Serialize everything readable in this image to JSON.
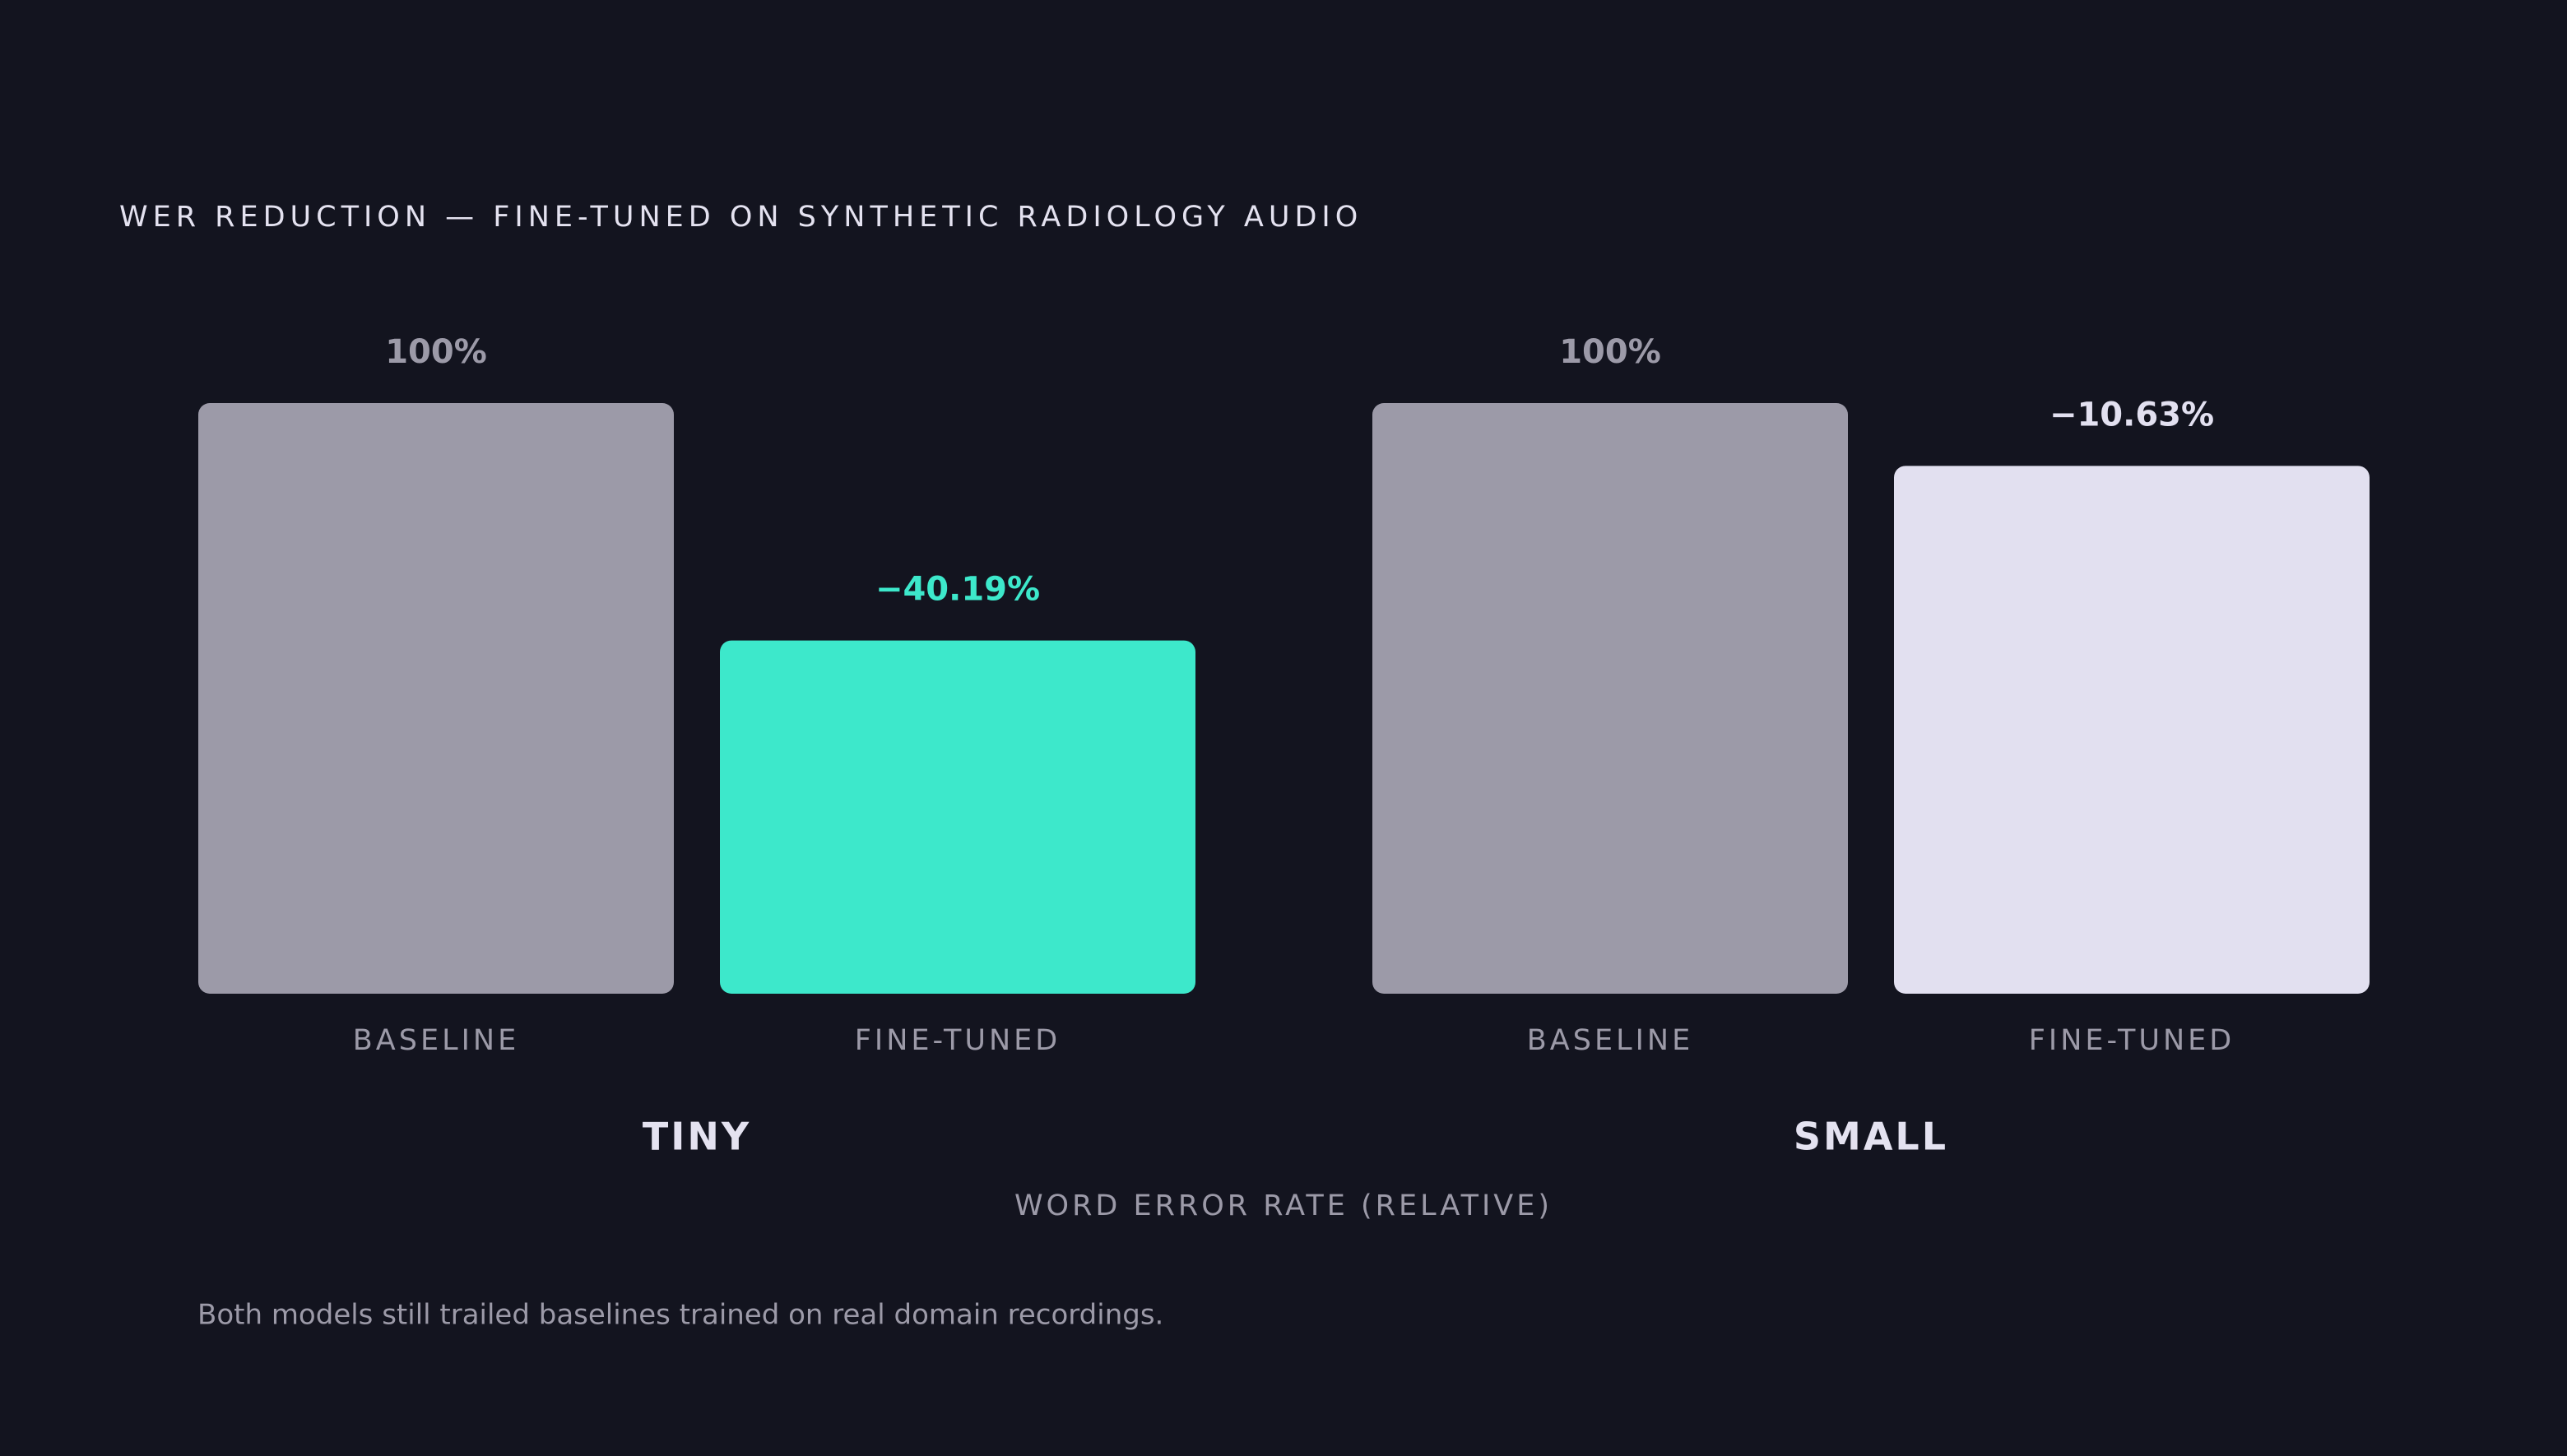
{
  "chart_data": {
    "type": "bar",
    "title": "WER REDUCTION — FINE-TUNED ON SYNTHETIC RADIOLOGY AUDIO",
    "x_label": "WORD ERROR RATE (RELATIVE)",
    "note": "Both models still trailed baselines trained on real domain recordings.",
    "categories": [
      "BASELINE",
      "FINE-TUNED"
    ],
    "ylim": [
      0,
      100
    ],
    "groups": [
      {
        "name": "TINY",
        "values": [
          100,
          59.81
        ],
        "colors": [
          "#9c9aa8",
          "#3de8cb"
        ],
        "value_labels": [
          "100%",
          null
        ],
        "change": -40.19,
        "change_label": "−40.19%",
        "change_color": "#3de8cb"
      },
      {
        "name": "SMALL",
        "values": [
          100,
          89.37
        ],
        "colors": [
          "#9c9aa8",
          "#e2e0f0"
        ],
        "value_labels": [
          "100%",
          null
        ],
        "change": -10.63,
        "change_label": "−10.63%",
        "change_color": "#e2e0f0"
      }
    ]
  }
}
